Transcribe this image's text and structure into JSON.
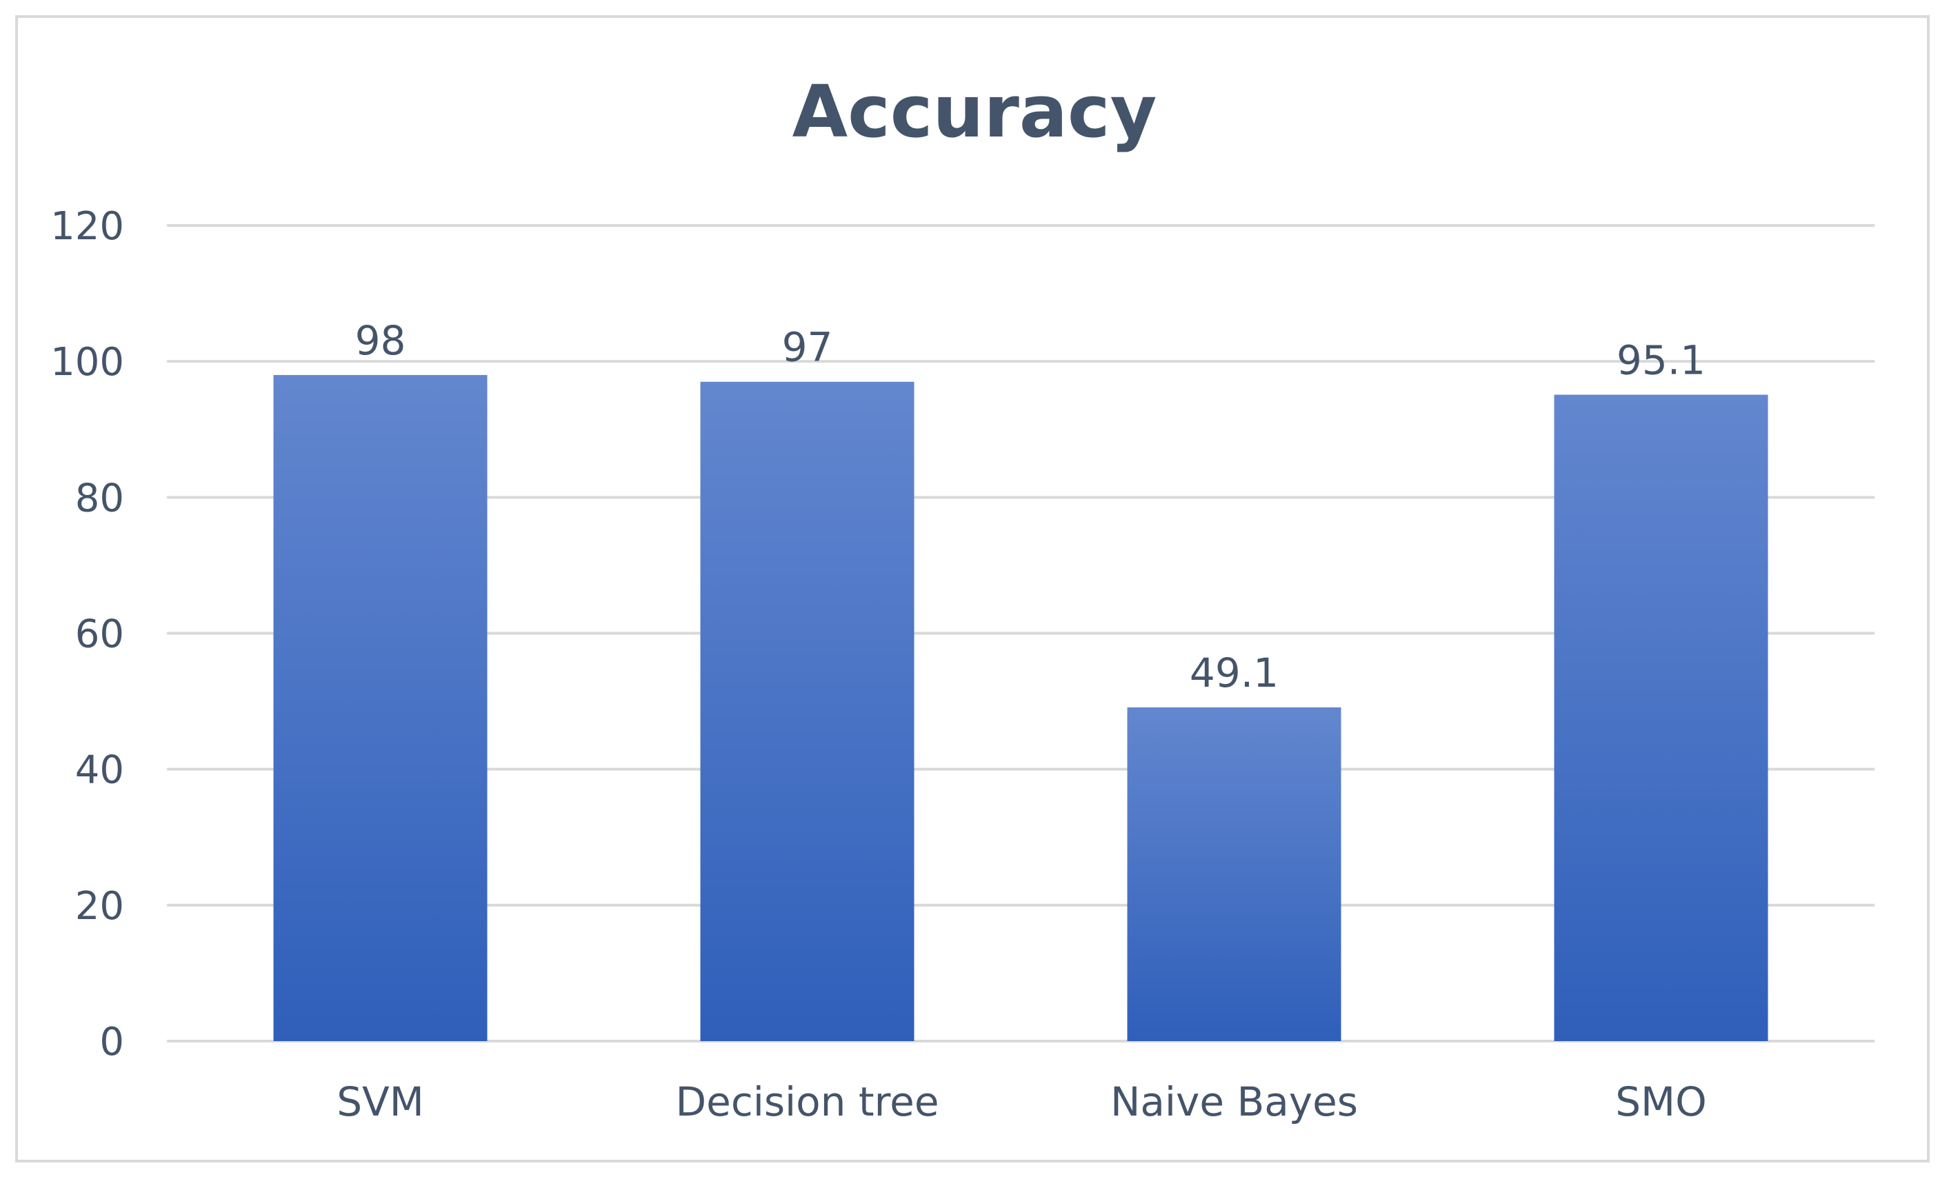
{
  "chart_data": {
    "type": "bar",
    "title": "Accuracy",
    "categories": [
      "SVM",
      "Decision tree",
      "Naive Bayes",
      "SMO"
    ],
    "values": [
      98,
      97,
      49.1,
      95.1
    ],
    "data_labels": [
      "98",
      "97",
      "49.1",
      "95.1"
    ],
    "yticks": [
      0,
      20,
      40,
      60,
      80,
      100,
      120
    ],
    "ylim": [
      0,
      120
    ],
    "xlabel": "",
    "ylabel": "",
    "grid": true,
    "legend": "none",
    "bar_color_top": "#6387cf",
    "bar_color_bottom": "#2f5fba",
    "text_color": "#44546a",
    "grid_color": "#d9d9d9"
  }
}
